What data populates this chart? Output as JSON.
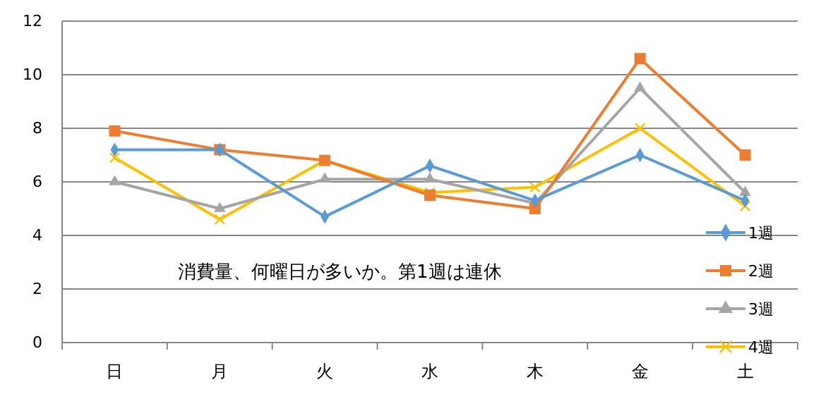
{
  "chart_data": {
    "type": "line",
    "categories": [
      "日",
      "月",
      "火",
      "水",
      "木",
      "金",
      "土"
    ],
    "series": [
      {
        "name": "1週",
        "color": "#5b9bd5",
        "marker": "diamond",
        "values": [
          7.2,
          7.2,
          4.7,
          6.6,
          5.3,
          7.0,
          5.3
        ]
      },
      {
        "name": "2週",
        "color": "#ed7d31",
        "marker": "square",
        "values": [
          7.9,
          7.2,
          6.8,
          5.5,
          5.0,
          10.6,
          7.0
        ]
      },
      {
        "name": "3週",
        "color": "#a5a5a5",
        "marker": "triangle",
        "values": [
          6.0,
          5.0,
          6.1,
          6.1,
          5.2,
          9.5,
          5.6
        ]
      },
      {
        "name": "4週",
        "color": "#ffc000",
        "marker": "cross",
        "values": [
          6.9,
          4.6,
          6.8,
          5.6,
          5.8,
          8.0,
          5.1
        ]
      }
    ],
    "ylim": [
      0,
      12
    ],
    "yticks": [
      0,
      2,
      4,
      6,
      8,
      10,
      12
    ],
    "grid": "y",
    "legend": "bottom right",
    "annotations": [
      "消費量、何曜日が多いか。第1週は連休"
    ]
  }
}
